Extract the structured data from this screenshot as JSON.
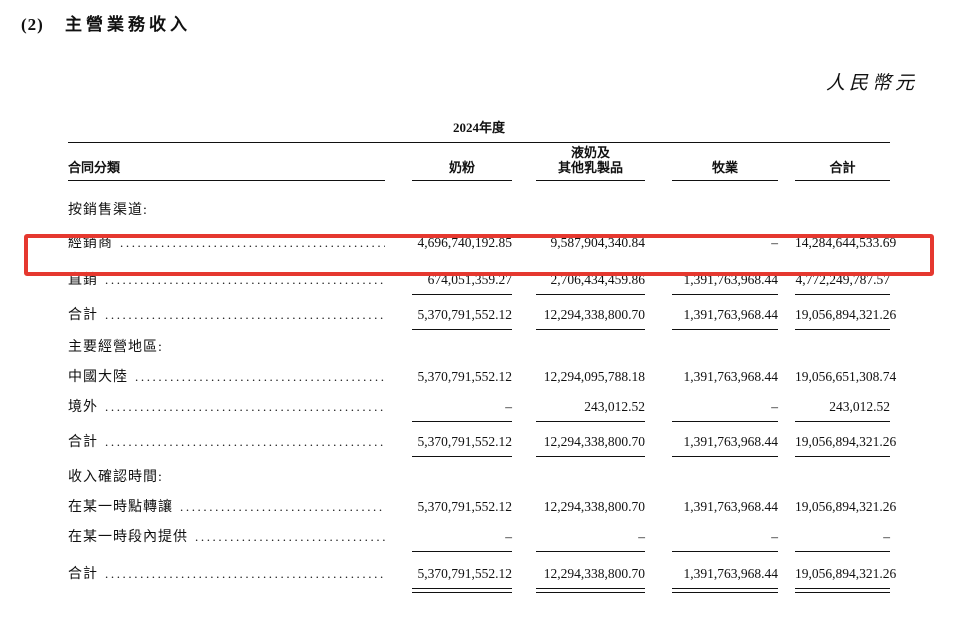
{
  "page": {
    "section_number": "(2)",
    "title": "主營業務收入",
    "currency_note": "人民幣元"
  },
  "table": {
    "period_header": "2024年度",
    "columns": {
      "label": "合同分類",
      "milk_powder": "奶粉",
      "liquid_milk_line1": "液奶及",
      "liquid_milk_line2": "其他乳製品",
      "ranching": "牧業",
      "total": "合計"
    },
    "sections": [
      {
        "heading": "按銷售渠道:",
        "rows": [
          {
            "label": "經銷商",
            "values": [
              "4,696,740,192.85",
              "9,587,904,340.84",
              "–",
              "14,284,644,533.69"
            ],
            "highlighted": true
          },
          {
            "label": "直銷",
            "values": [
              "674,051,359.27",
              "2,706,434,459.86",
              "1,391,763,968.44",
              "4,772,249,787.57"
            ]
          },
          {
            "label": "合計",
            "values": [
              "5,370,791,552.12",
              "12,294,338,800.70",
              "1,391,763,968.44",
              "19,056,894,321.26"
            ]
          }
        ]
      },
      {
        "heading": "主要經營地區:",
        "rows": [
          {
            "label": "中國大陸",
            "values": [
              "5,370,791,552.12",
              "12,294,095,788.18",
              "1,391,763,968.44",
              "19,056,651,308.74"
            ]
          },
          {
            "label": "境外",
            "values": [
              "–",
              "243,012.52",
              "–",
              "243,012.52"
            ]
          },
          {
            "label": "合計",
            "values": [
              "5,370,791,552.12",
              "12,294,338,800.70",
              "1,391,763,968.44",
              "19,056,894,321.26"
            ]
          }
        ]
      },
      {
        "heading": "收入確認時間:",
        "rows": [
          {
            "label": "在某一時點轉讓",
            "values": [
              "5,370,791,552.12",
              "12,294,338,800.70",
              "1,391,763,968.44",
              "19,056,894,321.26"
            ]
          },
          {
            "label": "在某一時段內提供",
            "values": [
              "–",
              "–",
              "–",
              "–"
            ]
          },
          {
            "label": "合計",
            "values": [
              "5,370,791,552.12",
              "12,294,338,800.70",
              "1,391,763,968.44",
              "19,056,894,321.26"
            ]
          }
        ]
      }
    ]
  },
  "annotation": {
    "highlighted_row": "經銷商",
    "highlight_color": "#e5382f"
  }
}
